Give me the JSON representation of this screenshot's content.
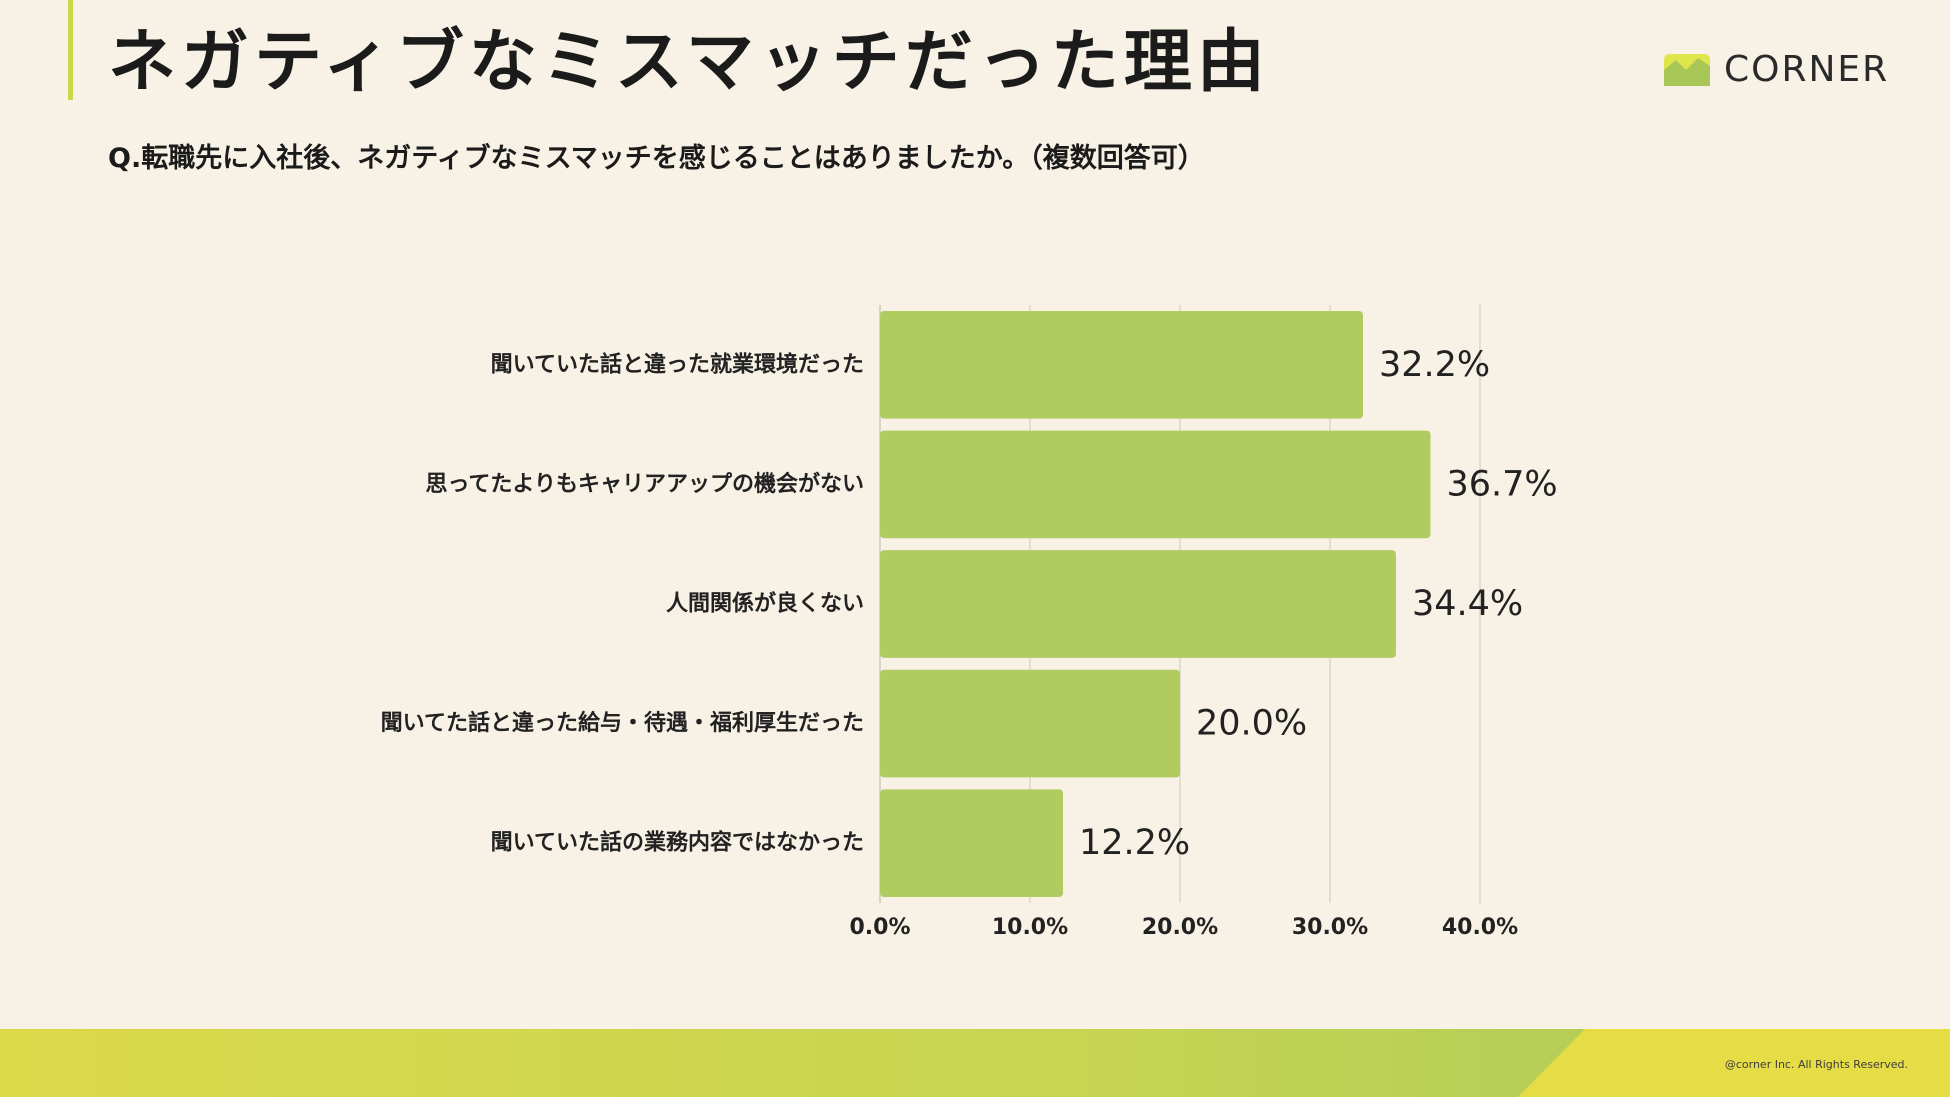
{
  "header": {
    "title": "ネガティブなミスマッチだった理由",
    "subtitle": "Q.転職先に入社後、ネガティブなミスマッチを感じることはありましたか。（複数回答可）"
  },
  "logo": {
    "text": "CORNER",
    "icon": "corner-logo-icon"
  },
  "footer": {
    "copyright": "@corner Inc. All Rights Reserved."
  },
  "colors": {
    "bar": "#b0cb5f",
    "background": "#f8f2e6",
    "accent": "#c8d84a",
    "gridline": "#dcd6c9"
  },
  "chart_data": {
    "type": "bar",
    "orientation": "horizontal",
    "categories": [
      "聞いていた話と違った就業環境だった",
      "思ってたよりもキャリアアップの機会がない",
      "人間関係が良くない",
      "聞いてた話と違った給与・待遇・福利厚生だった",
      "聞いていた話の業務内容ではなかった"
    ],
    "values": [
      32.2,
      36.7,
      34.4,
      20.0,
      12.2
    ],
    "value_labels": [
      "32.2%",
      "36.7%",
      "34.4%",
      "20.0%",
      "12.2%"
    ],
    "ticks": [
      0,
      10,
      20,
      30,
      40
    ],
    "tick_labels": [
      "0.0%",
      "10.0%",
      "20.0%",
      "30.0%",
      "40.0%"
    ],
    "xlim": [
      0,
      40
    ],
    "grid": true,
    "title": "",
    "xlabel": "",
    "ylabel": ""
  }
}
